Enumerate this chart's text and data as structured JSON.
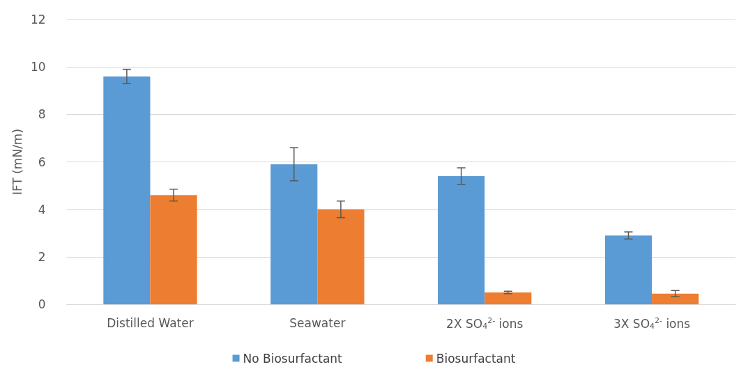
{
  "chart_data": {
    "type": "bar",
    "ylabel": "IFT (mN/m)",
    "categories": [
      "Distilled Water",
      "Seawater",
      "2X SO$_{4}$$^{2-}$ ions",
      "3X SO$_{4}$$^{2-}$ ions"
    ],
    "series": [
      {
        "name": "No Biosurfactant",
        "color": "#5b9bd5",
        "values": [
          9.6,
          5.9,
          5.4,
          2.9
        ],
        "errors": [
          0.3,
          0.7,
          0.35,
          0.15
        ]
      },
      {
        "name": "Biosurfactant",
        "color": "#ed7d31",
        "values": [
          4.6,
          4.0,
          0.5,
          0.45
        ],
        "errors": [
          0.25,
          0.35,
          0.05,
          0.13
        ]
      }
    ],
    "ylim": [
      0,
      12
    ],
    "yticks": [
      0,
      2,
      4,
      6,
      8,
      10,
      12
    ],
    "grid": "y",
    "legend": "bottom"
  }
}
